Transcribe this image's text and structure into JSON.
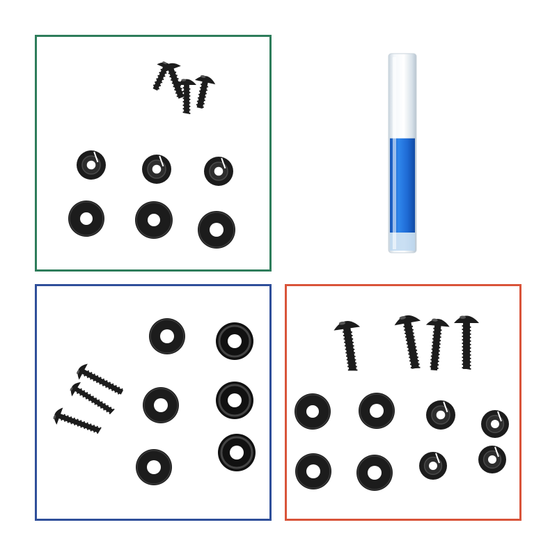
{
  "colors": {
    "background": "#ffffff",
    "group_green": "#2e7d5b",
    "group_blue": "#2f4f9a",
    "group_red": "#d9543a",
    "hardware": "#1c1c1c",
    "threadlocker": "#1f6fd6",
    "tube": "#dfe9f1"
  },
  "groups": [
    {
      "name": "green-group",
      "color": "#2e7d5b",
      "contents": [
        "truss-head-screw",
        "truss-head-screw",
        "truss-head-screw",
        "slotted-grommet",
        "slotted-grommet",
        "slotted-grommet",
        "flat-washer",
        "flat-washer",
        "flat-washer"
      ]
    },
    {
      "name": "blue-group",
      "color": "#2f4f9a",
      "contents": [
        "truss-head-screw",
        "truss-head-screw",
        "truss-head-screw",
        "flat-washer",
        "flat-washer",
        "flat-washer",
        "cup-washer",
        "cup-washer",
        "cup-washer"
      ]
    },
    {
      "name": "red-group",
      "color": "#d9543a",
      "contents": [
        "truss-head-screw",
        "truss-head-screw",
        "truss-head-screw",
        "truss-head-screw",
        "flat-washer",
        "flat-washer",
        "flat-washer",
        "flat-washer",
        "slotted-grommet",
        "slotted-grommet",
        "slotted-grommet",
        "slotted-grommet"
      ]
    }
  ],
  "tube": {
    "name": "threadlocker-tube",
    "fill_level": 0.55
  }
}
